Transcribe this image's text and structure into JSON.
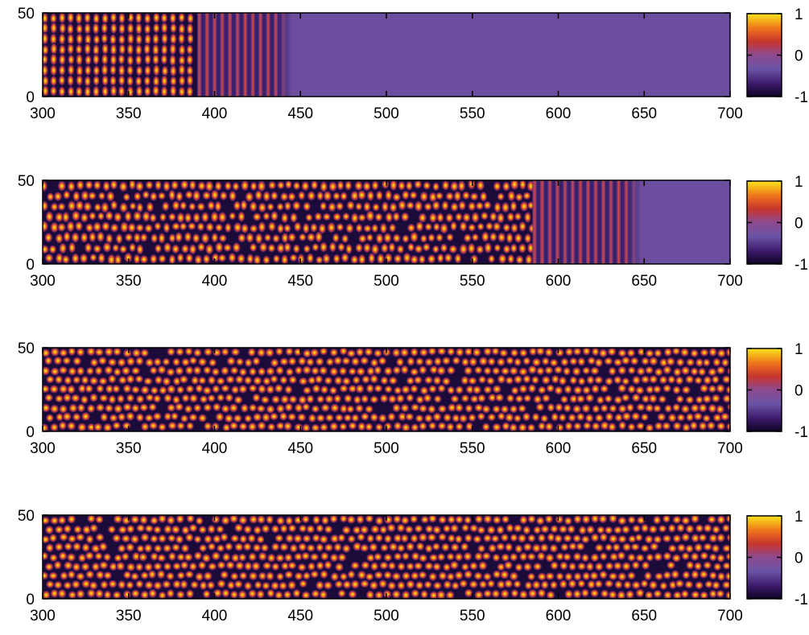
{
  "chart_data": [
    {
      "type": "heatmap",
      "title": "",
      "xlabel": "",
      "ylabel": "",
      "xlim": [
        300,
        700
      ],
      "ylim": [
        0,
        50
      ],
      "xticks": [
        "300",
        "350",
        "400",
        "450",
        "500",
        "550",
        "600",
        "650",
        "700"
      ],
      "yticks": [
        "0",
        "50"
      ],
      "colorbar": {
        "min": -1,
        "max": 1,
        "ticks": [
          "1",
          "0",
          "-1"
        ],
        "colors": [
          "#0b0221",
          "#3f1d6e",
          "#6a54a6",
          "#8d4a8e",
          "#c8352d",
          "#ef7a1a",
          "#fbe51d"
        ]
      },
      "pattern": {
        "description_free": true,
        "front_start": 390,
        "front_end": 435,
        "front_extent_x": 445,
        "ordering": "stripes"
      }
    },
    {
      "type": "heatmap",
      "title": "",
      "xlabel": "",
      "ylabel": "",
      "xlim": [
        300,
        700
      ],
      "ylim": [
        0,
        50
      ],
      "xticks": [
        "300",
        "350",
        "400",
        "450",
        "500",
        "550",
        "600",
        "650",
        "700"
      ],
      "yticks": [
        "0",
        "50"
      ],
      "colorbar": {
        "min": -1,
        "max": 1,
        "ticks": [
          "1",
          "0",
          "-1"
        ],
        "colors": [
          "#0b0221",
          "#3f1d6e",
          "#6a54a6",
          "#8d4a8e",
          "#c8352d",
          "#ef7a1a",
          "#fbe51d"
        ]
      },
      "pattern": {
        "front_start": 585,
        "front_end": 640,
        "front_extent_x": 648,
        "ordering": "mixed"
      }
    },
    {
      "type": "heatmap",
      "title": "",
      "xlabel": "",
      "ylabel": "",
      "xlim": [
        300,
        700
      ],
      "ylim": [
        0,
        50
      ],
      "xticks": [
        "300",
        "350",
        "400",
        "450",
        "500",
        "550",
        "600",
        "650",
        "700"
      ],
      "yticks": [
        "0",
        "50"
      ],
      "colorbar": {
        "min": -1,
        "max": 1,
        "ticks": [
          "1",
          "0",
          "-1"
        ],
        "colors": [
          "#0b0221",
          "#3f1d6e",
          "#6a54a6",
          "#8d4a8e",
          "#c8352d",
          "#ef7a1a",
          "#fbe51d"
        ]
      },
      "pattern": {
        "front_start": 800,
        "front_end": 800,
        "front_extent_x": 700,
        "ordering": "hexagonal"
      }
    },
    {
      "type": "heatmap",
      "title": "",
      "xlabel": "",
      "ylabel": "",
      "xlim": [
        300,
        700
      ],
      "ylim": [
        0,
        50
      ],
      "xticks": [
        "300",
        "350",
        "400",
        "450",
        "500",
        "550",
        "600",
        "650",
        "700"
      ],
      "yticks": [
        "0",
        "50"
      ],
      "colorbar": {
        "min": -1,
        "max": 1,
        "ticks": [
          "1",
          "0",
          "-1"
        ],
        "colors": [
          "#0b0221",
          "#3f1d6e",
          "#6a54a6",
          "#8d4a8e",
          "#c8352d",
          "#ef7a1a",
          "#fbe51d"
        ]
      },
      "pattern": {
        "front_start": 800,
        "front_end": 800,
        "front_extent_x": 700,
        "ordering": "hexagonal"
      }
    }
  ]
}
